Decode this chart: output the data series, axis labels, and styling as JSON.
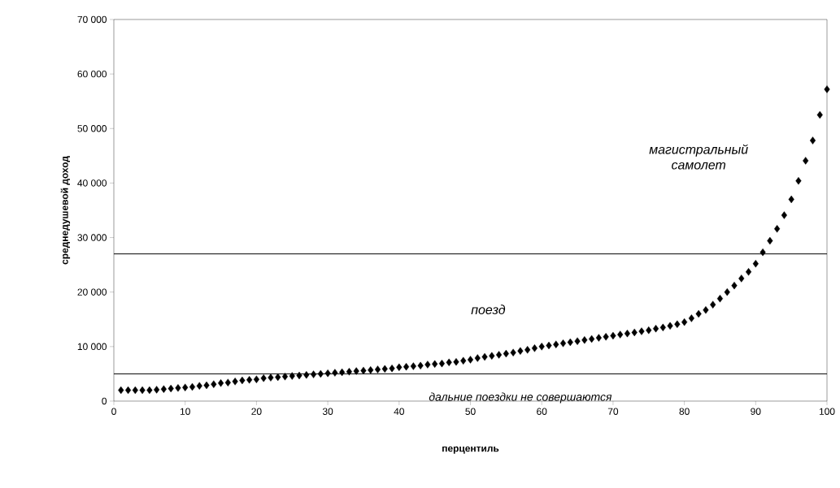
{
  "chart_data": {
    "type": "scatter",
    "xlabel": "перцентиль",
    "ylabel": "среднедушевой доход",
    "x": [
      1,
      2,
      3,
      4,
      5,
      6,
      7,
      8,
      9,
      10,
      11,
      12,
      13,
      14,
      15,
      16,
      17,
      18,
      19,
      20,
      21,
      22,
      23,
      24,
      25,
      26,
      27,
      28,
      29,
      30,
      31,
      32,
      33,
      34,
      35,
      36,
      37,
      38,
      39,
      40,
      41,
      42,
      43,
      44,
      45,
      46,
      47,
      48,
      49,
      50,
      51,
      52,
      53,
      54,
      55,
      56,
      57,
      58,
      59,
      60,
      61,
      62,
      63,
      64,
      65,
      66,
      67,
      68,
      69,
      70,
      71,
      72,
      73,
      74,
      75,
      76,
      77,
      78,
      79,
      80,
      81,
      82,
      83,
      84,
      85,
      86,
      87,
      88,
      89,
      90,
      91,
      92,
      93,
      94,
      95,
      96,
      97,
      98,
      99,
      100
    ],
    "values": [
      2000,
      2000,
      2000,
      2000,
      2000,
      2100,
      2200,
      2300,
      2400,
      2500,
      2600,
      2800,
      2900,
      3100,
      3300,
      3400,
      3600,
      3800,
      3900,
      4000,
      4200,
      4300,
      4400,
      4500,
      4600,
      4700,
      4800,
      4900,
      5000,
      5100,
      5200,
      5300,
      5400,
      5500,
      5600,
      5700,
      5800,
      5900,
      6000,
      6200,
      6300,
      6400,
      6500,
      6700,
      6800,
      6900,
      7100,
      7200,
      7400,
      7600,
      7900,
      8100,
      8300,
      8500,
      8700,
      8900,
      9200,
      9400,
      9700,
      10000,
      10200,
      10400,
      10600,
      10800,
      11000,
      11200,
      11400,
      11600,
      11800,
      12000,
      12200,
      12400,
      12600,
      12800,
      13000,
      13300,
      13500,
      13800,
      14100,
      14500,
      15200,
      16000,
      16700,
      17700,
      18800,
      20000,
      21200,
      22500,
      23700,
      25200,
      27300,
      29400,
      31600,
      34100,
      37000,
      40400,
      44100,
      47800,
      52500,
      57200
    ],
    "color": "#000000",
    "marker": "diamond",
    "xlim": [
      0,
      100
    ],
    "xticks": [
      0,
      10,
      20,
      30,
      40,
      50,
      60,
      70,
      80,
      90,
      100
    ],
    "ylim": [
      0,
      70000
    ],
    "yticks": [
      {
        "value": 0,
        "label": "0"
      },
      {
        "value": 10000,
        "label": "10 000"
      },
      {
        "value": 20000,
        "label": "20 000"
      },
      {
        "value": 30000,
        "label": "30 000"
      },
      {
        "value": 40000,
        "label": "40 000"
      },
      {
        "value": 50000,
        "label": "50 000"
      },
      {
        "value": 60000,
        "label": "60 000"
      },
      {
        "value": 70000,
        "label": "70 000"
      }
    ],
    "grid": false,
    "ref_lines": [
      {
        "axis": "y",
        "value": 27000,
        "color": "#000000"
      },
      {
        "axis": "y",
        "value": 5000,
        "color": "#000000"
      }
    ],
    "annotations": [
      "магистральный самолет",
      "поезд",
      "дальние поездки не совершаются"
    ]
  }
}
